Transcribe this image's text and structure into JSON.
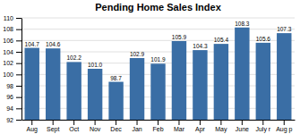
{
  "chart_data": {
    "type": "bar",
    "title": "Pending Home Sales Index",
    "categories": [
      "Aug",
      "Sept",
      "Oct",
      "Nov",
      "Dec",
      "Jan",
      "Feb",
      "Mar",
      "Apr",
      "May",
      "June",
      "July r",
      "Aug p"
    ],
    "values": [
      104.7,
      104.6,
      102.2,
      101.0,
      98.7,
      102.9,
      101.9,
      105.9,
      104.3,
      105.4,
      108.3,
      105.6,
      107.3
    ],
    "value_labels": [
      "104.7",
      "104.6",
      "102.2",
      "101.0",
      "98.7",
      "102.9",
      "101.9",
      "105.9",
      "104.3",
      "105.4",
      "108.3",
      "105.6",
      "107.3"
    ],
    "color": "#3A6EA5",
    "ylim": [
      92,
      110
    ],
    "yticks": [
      92,
      94,
      96,
      98,
      100,
      102,
      104,
      106,
      108,
      110
    ],
    "grid": true,
    "data_labels": true
  }
}
